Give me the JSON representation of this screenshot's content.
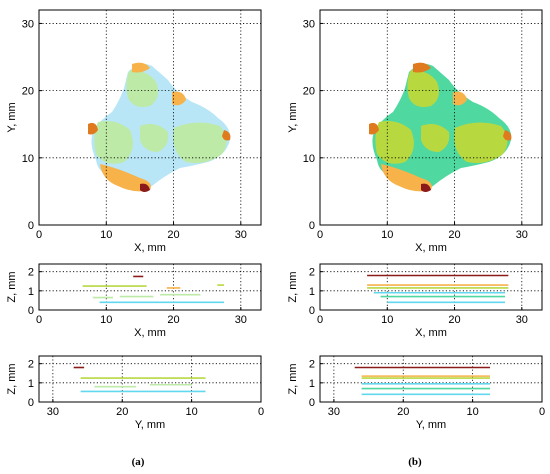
{
  "captions": {
    "a": "(a)",
    "b": "(b)"
  },
  "colors": {
    "light_blue": "#b8e6f7",
    "light_green": "#bdeaa6",
    "orange": "#f7b24a",
    "dark_orange": "#e07a1e",
    "dark_red": "#8b1a1a",
    "teal_green": "#4fd8a0",
    "yellow_green": "#b8d840",
    "cyan": "#62d8f0",
    "brown": "#a0522d"
  },
  "chart_data": [
    {
      "id": "a-xy",
      "type": "scatter",
      "xlabel": "X, mm",
      "ylabel": "Y, mm",
      "xlim": [
        0,
        33
      ],
      "ylim": [
        32,
        0
      ],
      "xticks": [
        0,
        10,
        20,
        30
      ],
      "yticks": [
        0,
        10,
        20,
        30
      ],
      "grid": true,
      "palette": [
        "light_blue",
        "light_green",
        "orange",
        "dark_orange",
        "dark_red"
      ]
    },
    {
      "id": "b-xy",
      "type": "scatter",
      "xlabel": "X, mm",
      "ylabel": "Y, mm",
      "xlim": [
        0,
        33
      ],
      "ylim": [
        32,
        0
      ],
      "xticks": [
        0,
        10,
        20,
        30
      ],
      "yticks": [
        0,
        10,
        20,
        30
      ],
      "grid": true,
      "palette": [
        "teal_green",
        "yellow_green",
        "orange",
        "dark_orange",
        "dark_red"
      ]
    },
    {
      "id": "a-xz",
      "type": "line",
      "xlabel": "X, mm",
      "ylabel": "Z, mm",
      "xlim": [
        0,
        33
      ],
      "ylim": [
        2.4,
        0
      ],
      "xticks": [
        0,
        10,
        20,
        30
      ],
      "yticks": [
        0,
        1,
        2
      ],
      "grid": true,
      "segments": [
        {
          "x": [
            9,
            27.5
          ],
          "z": 0.4,
          "color": "cyan"
        },
        {
          "x": [
            8,
            11
          ],
          "z": 0.65,
          "color": "light_green"
        },
        {
          "x": [
            12,
            17
          ],
          "z": 0.7,
          "color": "light_green"
        },
        {
          "x": [
            18,
            24
          ],
          "z": 0.8,
          "color": "light_green"
        },
        {
          "x": [
            6.5,
            16
          ],
          "z": 1.25,
          "color": "yellow_green"
        },
        {
          "x": [
            19,
            21
          ],
          "z": 1.15,
          "color": "orange"
        },
        {
          "x": [
            26.5,
            27.5
          ],
          "z": 1.3,
          "color": "yellow_green"
        },
        {
          "x": [
            14,
            15.5
          ],
          "z": 1.75,
          "color": "dark_red"
        }
      ]
    },
    {
      "id": "b-xz",
      "type": "line",
      "xlabel": "X, mm",
      "ylabel": "Z, mm",
      "xlim": [
        0,
        33
      ],
      "ylim": [
        2.4,
        0
      ],
      "xticks": [
        0,
        10,
        20,
        30
      ],
      "yticks": [
        0,
        1,
        2
      ],
      "grid": true,
      "segments": [
        {
          "x": [
            10,
            27.5
          ],
          "z": 0.4,
          "color": "cyan"
        },
        {
          "x": [
            9,
            27.5
          ],
          "z": 0.7,
          "color": "teal_green"
        },
        {
          "x": [
            8,
            27.5
          ],
          "z": 0.9,
          "color": "cyan"
        },
        {
          "x": [
            7,
            28
          ],
          "z": 1.15,
          "color": "yellow_green"
        },
        {
          "x": [
            7,
            28
          ],
          "z": 1.3,
          "color": "orange"
        },
        {
          "x": [
            7,
            28
          ],
          "z": 1.8,
          "color": "dark_red"
        }
      ]
    },
    {
      "id": "a-yz",
      "type": "line",
      "xlabel": "Y, mm",
      "ylabel": "Z, mm",
      "xlim": [
        32,
        0
      ],
      "ylim": [
        2.4,
        0
      ],
      "xticks": [
        30,
        20,
        10,
        0
      ],
      "yticks": [
        0,
        1,
        2
      ],
      "grid": true,
      "segments": [
        {
          "y": [
            26,
            8
          ],
          "z": 0.55,
          "color": "cyan"
        },
        {
          "y": [
            24,
            18
          ],
          "z": 0.8,
          "color": "light_green"
        },
        {
          "y": [
            16,
            10
          ],
          "z": 0.9,
          "color": "light_green"
        },
        {
          "y": [
            26,
            8
          ],
          "z": 1.25,
          "color": "yellow_green"
        },
        {
          "y": [
            27,
            25.5
          ],
          "z": 1.8,
          "color": "dark_red"
        }
      ]
    },
    {
      "id": "b-yz",
      "type": "line",
      "xlabel": "Y, mm",
      "ylabel": "Z, mm",
      "xlim": [
        32,
        0
      ],
      "ylim": [
        2.4,
        0
      ],
      "xticks": [
        30,
        20,
        10,
        0
      ],
      "yticks": [
        0,
        1,
        2
      ],
      "grid": true,
      "segments": [
        {
          "y": [
            26,
            7.5
          ],
          "z": 0.4,
          "color": "cyan"
        },
        {
          "y": [
            26,
            7.5
          ],
          "z": 0.7,
          "color": "teal_green"
        },
        {
          "y": [
            26,
            7.5
          ],
          "z": 0.95,
          "color": "cyan"
        },
        {
          "y": [
            26,
            7.5
          ],
          "z": 1.25,
          "color": "yellow_green"
        },
        {
          "y": [
            26,
            7.5
          ],
          "z": 1.35,
          "color": "orange"
        },
        {
          "y": [
            27,
            7.5
          ],
          "z": 1.8,
          "color": "dark_red"
        }
      ]
    }
  ]
}
